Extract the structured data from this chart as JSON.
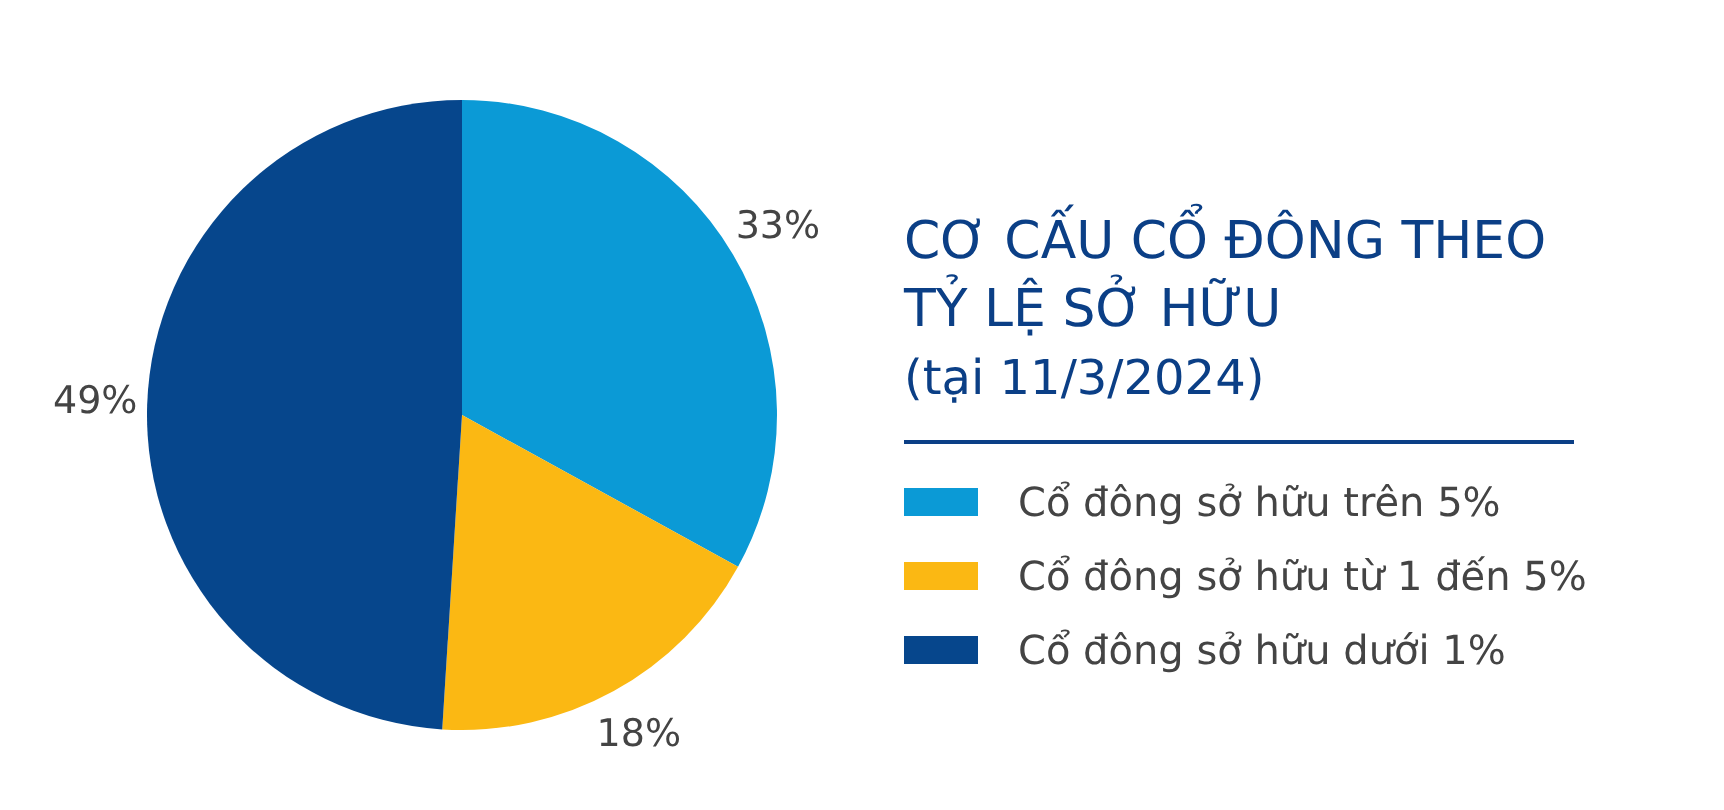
{
  "chart_data": {
    "type": "pie",
    "title": "CƠ CẤU CỔ ĐÔNG THEO TỶ LỆ SỞ HỮU",
    "subtitle": "(tại 11/3/2024)",
    "categories": [
      "Cổ đông sở hữu trên 5%",
      "Cổ đông sở hữu từ 1 đến 5%",
      "Cổ đông sở hữu dưới 1%"
    ],
    "values": [
      33,
      18,
      49
    ],
    "colors": [
      "#0b9ad6",
      "#fbb813",
      "#06468c"
    ],
    "value_labels": [
      "33%",
      "18%",
      "49%"
    ],
    "legend": "right"
  }
}
